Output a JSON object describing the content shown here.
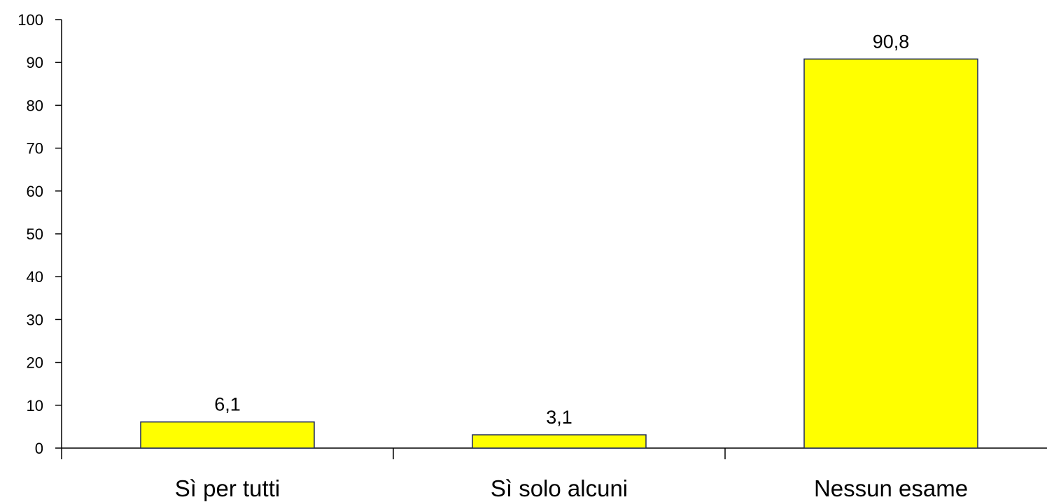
{
  "chart_data": {
    "type": "bar",
    "categories": [
      "Sì per tutti",
      "Sì solo alcuni",
      "Nessun esame"
    ],
    "values": [
      6.1,
      3.1,
      90.8
    ],
    "data_labels": [
      "6,1",
      "3,1",
      "90,8"
    ],
    "title": "",
    "xlabel": "",
    "ylabel": "",
    "ylim": [
      0,
      100
    ],
    "yticks": [
      0,
      10,
      20,
      30,
      40,
      50,
      60,
      70,
      80,
      90,
      100
    ],
    "grid": false,
    "legend": "none",
    "colors": {
      "bar_fill": "#ffff00",
      "bar_stroke": "#1f2a5a",
      "axis": "#000000"
    }
  }
}
